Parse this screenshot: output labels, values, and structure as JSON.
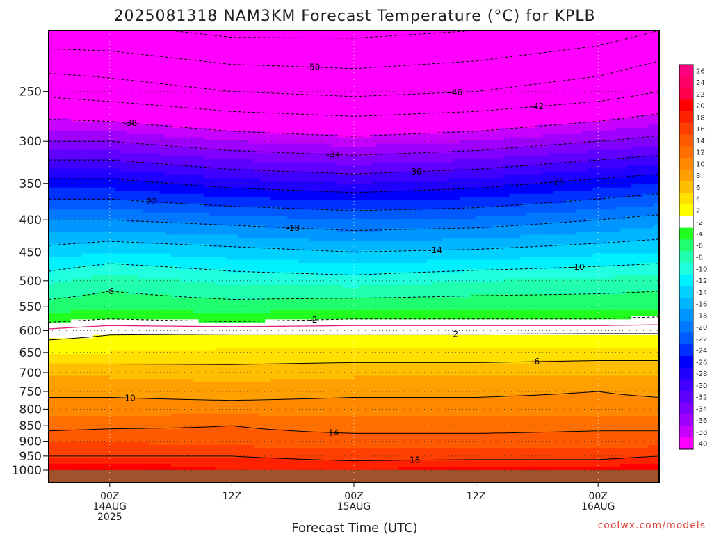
{
  "chart_data": {
    "type": "heatmap",
    "title": "2025081318 NAM3KM Forecast Temperature (°C) for KPLB",
    "xlabel": "Forecast Time (UTC)",
    "credit": "coolwx.com/models",
    "y_axis": {
      "scale": "log-pressure",
      "units": "hPa",
      "inverted": true,
      "ylim": [
        1000,
        200
      ],
      "ticks": [
        250,
        300,
        350,
        400,
        450,
        500,
        550,
        600,
        650,
        700,
        750,
        800,
        850,
        900,
        950,
        1000
      ]
    },
    "x_axis": {
      "range_hours": [
        -6,
        54
      ],
      "ticks": [
        {
          "hour": 0,
          "lines": [
            "00Z",
            "14AUG",
            "2025"
          ]
        },
        {
          "hour": 12,
          "lines": [
            "12Z"
          ]
        },
        {
          "hour": 24,
          "lines": [
            "00Z",
            "15AUG"
          ]
        },
        {
          "hour": 36,
          "lines": [
            "12Z"
          ]
        },
        {
          "hour": 48,
          "lines": [
            "00Z",
            "16AUG"
          ]
        }
      ],
      "grid": "dotted-vertical"
    },
    "colorbar": {
      "levels": [
        26,
        24,
        22,
        20,
        18,
        16,
        14,
        12,
        10,
        8,
        6,
        4,
        2,
        -2,
        -4,
        -6,
        -8,
        -10,
        -12,
        -14,
        -16,
        -18,
        -20,
        -22,
        -24,
        -26,
        -28,
        -30,
        -32,
        -34,
        -36,
        -38,
        -40
      ],
      "colors": [
        "#ff0080",
        "#ff0066",
        "#ff004c",
        "#ff0000",
        "#ff2200",
        "#ff4000",
        "#ff5a00",
        "#ff7000",
        "#ff8800",
        "#ffa000",
        "#ffbe00",
        "#ffe000",
        "#ffff00",
        "#ffffff",
        "#20ff20",
        "#20ff70",
        "#20ffb0",
        "#20ffe0",
        "#00f0ff",
        "#00d0ff",
        "#00b4ff",
        "#0096ff",
        "#0078ff",
        "#005aff",
        "#0030ff",
        "#0000ff",
        "#2000ff",
        "#4000ff",
        "#6000ff",
        "#8000ff",
        "#a000ff",
        "#c800ff",
        "#ff00ff"
      ]
    },
    "ground_color": "#a0522d",
    "freezing_line": {
      "color": "#e0207a",
      "value": 0
    },
    "contour_levels_shown": [
      -54,
      -50,
      -46,
      -42,
      -38,
      -34,
      -30,
      -26,
      -22,
      -18,
      -14,
      -10,
      -6,
      -2,
      2,
      6,
      10,
      14,
      18
    ],
    "profiles": [
      {
        "hour": -6,
        "points": [
          [
            1000,
            22
          ],
          [
            950,
            18
          ],
          [
            900,
            16
          ],
          [
            850,
            13
          ],
          [
            800,
            11
          ],
          [
            750,
            9.5
          ],
          [
            700,
            7.5
          ],
          [
            650,
            4
          ],
          [
            600,
            0.5
          ],
          [
            575,
            -3
          ],
          [
            550,
            -5
          ],
          [
            500,
            -8.5
          ],
          [
            450,
            -13
          ],
          [
            400,
            -18
          ],
          [
            350,
            -25
          ],
          [
            300,
            -34
          ],
          [
            250,
            -43
          ],
          [
            200,
            -53
          ]
        ]
      },
      {
        "hour": 0,
        "points": [
          [
            1000,
            22
          ],
          [
            950,
            18
          ],
          [
            900,
            16
          ],
          [
            850,
            13.5
          ],
          [
            800,
            11
          ],
          [
            750,
            9.5
          ],
          [
            700,
            7.5
          ],
          [
            650,
            4
          ],
          [
            600,
            1.5
          ],
          [
            575,
            -2
          ],
          [
            550,
            -4.5
          ],
          [
            500,
            -7
          ],
          [
            450,
            -12
          ],
          [
            400,
            -18
          ],
          [
            350,
            -25
          ],
          [
            300,
            -34
          ],
          [
            250,
            -44
          ],
          [
            200,
            -53
          ]
        ]
      },
      {
        "hour": 12,
        "points": [
          [
            1000,
            20
          ],
          [
            950,
            18
          ],
          [
            900,
            15
          ],
          [
            850,
            14
          ],
          [
            800,
            11
          ],
          [
            750,
            9
          ],
          [
            700,
            7
          ],
          [
            650,
            4.5
          ],
          [
            600,
            1.5
          ],
          [
            575,
            -3
          ],
          [
            550,
            -5
          ],
          [
            500,
            -8.5
          ],
          [
            450,
            -13
          ],
          [
            400,
            -19
          ],
          [
            350,
            -27
          ],
          [
            300,
            -36
          ],
          [
            250,
            -46
          ],
          [
            200,
            -55
          ]
        ]
      },
      {
        "hour": 24,
        "points": [
          [
            1000,
            20
          ],
          [
            950,
            17
          ],
          [
            900,
            15
          ],
          [
            850,
            13
          ],
          [
            800,
            11
          ],
          [
            750,
            9.5
          ],
          [
            700,
            7.5
          ],
          [
            650,
            4.5
          ],
          [
            600,
            1.5
          ],
          [
            575,
            -2
          ],
          [
            550,
            -4.5
          ],
          [
            500,
            -9
          ],
          [
            450,
            -14
          ],
          [
            400,
            -20
          ],
          [
            350,
            -28
          ],
          [
            300,
            -37
          ],
          [
            250,
            -47
          ],
          [
            200,
            -55
          ]
        ]
      },
      {
        "hour": 36,
        "points": [
          [
            1000,
            21
          ],
          [
            950,
            17
          ],
          [
            900,
            15
          ],
          [
            850,
            13
          ],
          [
            800,
            11
          ],
          [
            750,
            9.5
          ],
          [
            700,
            7.5
          ],
          [
            650,
            4.5
          ],
          [
            600,
            1.5
          ],
          [
            575,
            -2
          ],
          [
            550,
            -4.5
          ],
          [
            500,
            -8
          ],
          [
            450,
            -13.5
          ],
          [
            400,
            -19.5
          ],
          [
            350,
            -27
          ],
          [
            300,
            -36
          ],
          [
            250,
            -46
          ],
          [
            200,
            -54
          ]
        ]
      },
      {
        "hour": 48,
        "points": [
          [
            1000,
            21
          ],
          [
            950,
            17
          ],
          [
            900,
            15
          ],
          [
            850,
            13.5
          ],
          [
            800,
            11
          ],
          [
            750,
            10
          ],
          [
            700,
            7.5
          ],
          [
            650,
            5
          ],
          [
            600,
            1.5
          ],
          [
            575,
            -2
          ],
          [
            550,
            -4.5
          ],
          [
            500,
            -7.5
          ],
          [
            450,
            -12.5
          ],
          [
            400,
            -18
          ],
          [
            350,
            -25
          ],
          [
            300,
            -34
          ],
          [
            250,
            -44
          ],
          [
            200,
            -52
          ]
        ]
      },
      {
        "hour": 54,
        "points": [
          [
            1000,
            22
          ],
          [
            950,
            18
          ],
          [
            900,
            15
          ],
          [
            850,
            13.5
          ],
          [
            800,
            11
          ],
          [
            750,
            9.5
          ],
          [
            700,
            7.5
          ],
          [
            650,
            5
          ],
          [
            600,
            1.5
          ],
          [
            575,
            -1.5
          ],
          [
            550,
            -4.5
          ],
          [
            500,
            -7
          ],
          [
            450,
            -12
          ],
          [
            400,
            -17
          ],
          [
            350,
            -24
          ],
          [
            300,
            -33
          ],
          [
            250,
            -42
          ],
          [
            200,
            -50
          ]
        ]
      }
    ]
  }
}
